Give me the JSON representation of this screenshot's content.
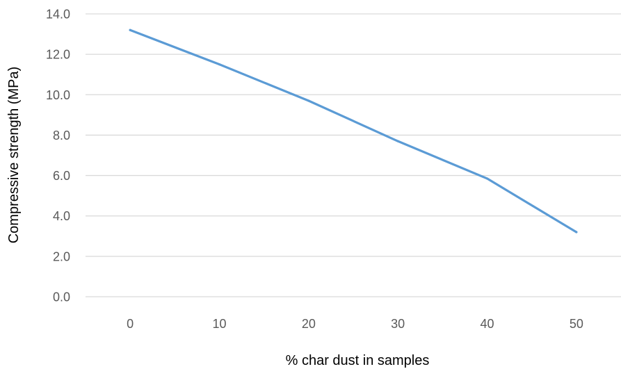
{
  "chart_data": {
    "type": "line",
    "title": "",
    "xlabel": "% char dust in samples",
    "ylabel": "Compressive strength (MPa)",
    "categories": [
      "0",
      "10",
      "20",
      "30",
      "40",
      "50"
    ],
    "series": [
      {
        "values": [
          13.2,
          11.5,
          9.7,
          7.7,
          5.85,
          3.2
        ]
      }
    ],
    "ylim": [
      0,
      14
    ],
    "yticks": [
      "0.0",
      "2.0",
      "4.0",
      "6.0",
      "8.0",
      "10.0",
      "12.0",
      "14.0"
    ],
    "grid": true,
    "legend": "none",
    "colors": {
      "line": "#5b9bd5",
      "grid": "#d9d9d9",
      "tick_text": "#595959",
      "title_text": "#000000"
    }
  }
}
